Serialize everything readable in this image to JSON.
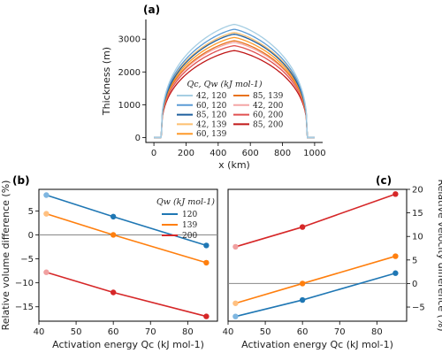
{
  "chart_data": [
    {
      "panel": "(a)",
      "type": "line",
      "xlabel": "x (km)",
      "ylabel": "Thickness (m)",
      "xlim": [
        -50,
        1050
      ],
      "ylim": [
        -150,
        3600
      ],
      "xticks": [
        "0",
        "200",
        "400",
        "600",
        "800",
        "1000"
      ],
      "xtick_values": [
        0,
        200,
        400,
        600,
        800,
        1000
      ],
      "yticks": [
        "0",
        "1000",
        "2000",
        "3000"
      ],
      "ytick_values": [
        0,
        1000,
        2000,
        3000
      ],
      "legend_title": "Qc, Qw (kJ mol-1)",
      "legend_position": "bottom-center",
      "x_extent": [
        0,
        1000
      ],
      "domain_edges": [
        45,
        955
      ],
      "series": [
        {
          "name": "42, 120",
          "color": "#a6cee3",
          "peak": 3450
        },
        {
          "name": "60, 120",
          "color": "#5b9bd5",
          "peak": 3300
        },
        {
          "name": "85, 120",
          "color": "#1f5f9e",
          "peak": 3150
        },
        {
          "name": "42, 139",
          "color": "#fdbf6f",
          "peak": 3200
        },
        {
          "name": "60, 139",
          "color": "#fd9a2a",
          "peak": 3050
        },
        {
          "name": "85, 139",
          "color": "#e8721c",
          "peak": 2950
        },
        {
          "name": "42, 200",
          "color": "#f4a6a6",
          "peak": 2900
        },
        {
          "name": "60, 200",
          "color": "#e05050",
          "peak": 2800
        },
        {
          "name": "85, 200",
          "color": "#c01818",
          "peak": 2650
        }
      ]
    },
    {
      "panel": "(b)",
      "type": "line",
      "xlabel": "Activation energy Qc (kJ mol-1)",
      "ylabel": "Relative volume difference (%)",
      "xlim": [
        40,
        88
      ],
      "ylim": [
        -18,
        9.5
      ],
      "xticks": [
        "40",
        "50",
        "60",
        "70",
        "80"
      ],
      "xtick_values": [
        40,
        50,
        60,
        70,
        80
      ],
      "yticks": [
        "-15",
        "-10",
        "-5",
        "0",
        "5"
      ],
      "ytick_values": [
        -15,
        -10,
        -5,
        0,
        5
      ],
      "legend_title": "Qw (kJ mol-1)",
      "legend_position": "upper-right",
      "x": [
        42,
        60,
        85
      ],
      "series": [
        {
          "name": "120",
          "color": "#1f77b4",
          "light": "#7fb6e0",
          "values": [
            8.3,
            3.8,
            -2.2
          ]
        },
        {
          "name": "139",
          "color": "#ff7f0e",
          "light": "#ffc080",
          "values": [
            4.4,
            0.0,
            -5.8
          ]
        },
        {
          "name": "200",
          "color": "#d62728",
          "light": "#f0a0a0",
          "values": [
            -7.8,
            -12.0,
            -17.0
          ]
        }
      ]
    },
    {
      "panel": "(c)",
      "type": "line",
      "xlabel": "Activation energy Qc (kJ mol-1)",
      "ylabel": "Relative velocity difference (%)",
      "xlim": [
        40,
        88
      ],
      "ylim": [
        -8,
        20
      ],
      "xticks": [
        "40",
        "50",
        "60",
        "70",
        "80"
      ],
      "xtick_values": [
        40,
        50,
        60,
        70,
        80
      ],
      "yticks": [
        "-5",
        "0",
        "5",
        "10",
        "15",
        "20"
      ],
      "ytick_values": [
        -5,
        0,
        5,
        10,
        15,
        20
      ],
      "x": [
        42,
        60,
        85
      ],
      "series": [
        {
          "name": "120",
          "color": "#1f77b4",
          "light": "#7fb6e0",
          "values": [
            -7.0,
            -3.5,
            2.2
          ]
        },
        {
          "name": "139",
          "color": "#ff7f0e",
          "light": "#ffc080",
          "values": [
            -4.2,
            0.0,
            5.8
          ]
        },
        {
          "name": "200",
          "color": "#d62728",
          "light": "#f0a0a0",
          "values": [
            7.8,
            12.0,
            19.0
          ]
        }
      ]
    }
  ]
}
